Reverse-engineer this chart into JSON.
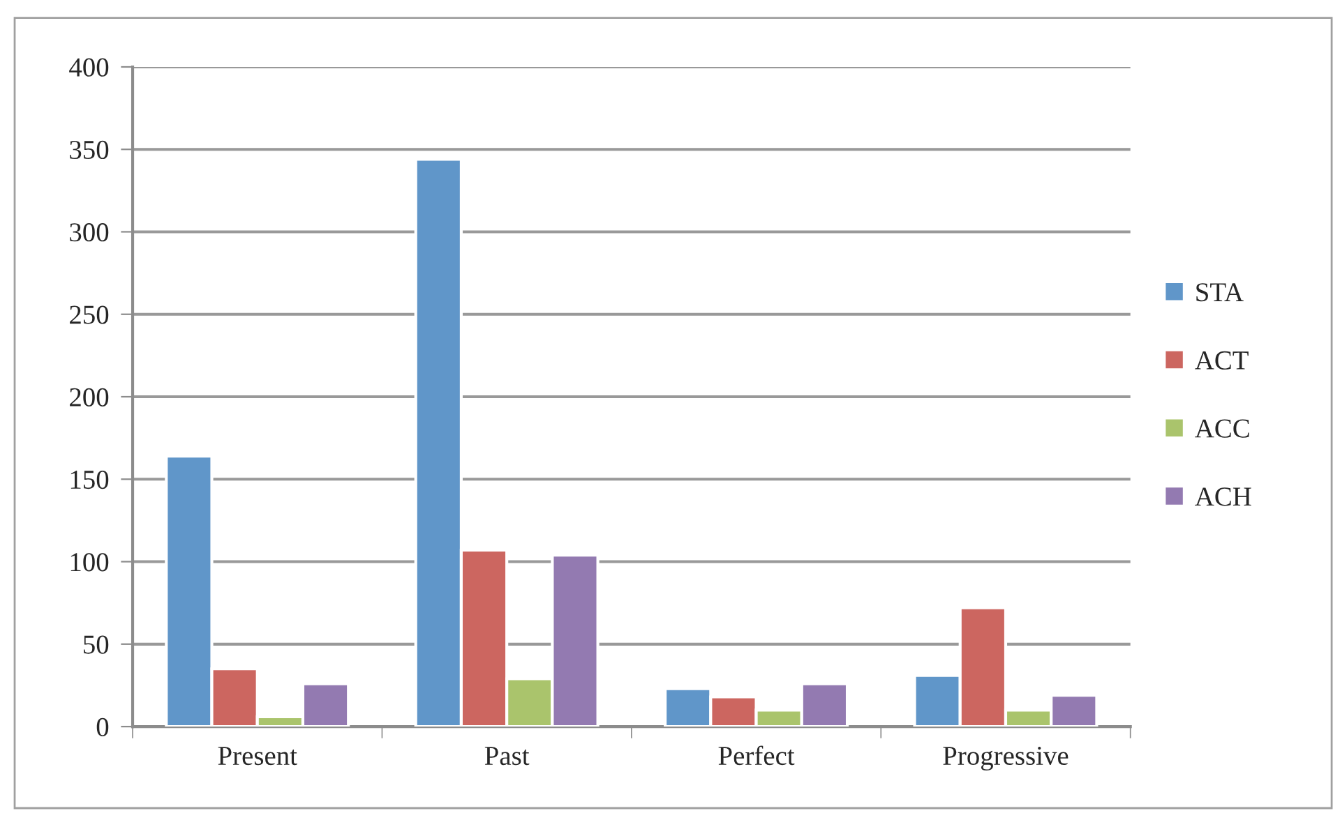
{
  "chart_data": {
    "type": "bar",
    "categories": [
      "Present",
      "Past",
      "Perfect",
      "Progressive"
    ],
    "series": [
      {
        "name": "STA",
        "color": "#6096c9",
        "values": [
          164,
          344,
          23,
          31
        ]
      },
      {
        "name": "ACT",
        "color": "#cc6660",
        "values": [
          35,
          107,
          18,
          72
        ]
      },
      {
        "name": "ACC",
        "color": "#aac46c",
        "values": [
          6,
          29,
          10,
          10
        ]
      },
      {
        "name": "ACH",
        "color": "#937ab1",
        "values": [
          26,
          104,
          26,
          19
        ]
      }
    ],
    "ylim": [
      0,
      400
    ],
    "yticks": [
      0,
      50,
      100,
      150,
      200,
      250,
      300,
      350,
      400
    ],
    "grid": "y",
    "legend": "right"
  }
}
